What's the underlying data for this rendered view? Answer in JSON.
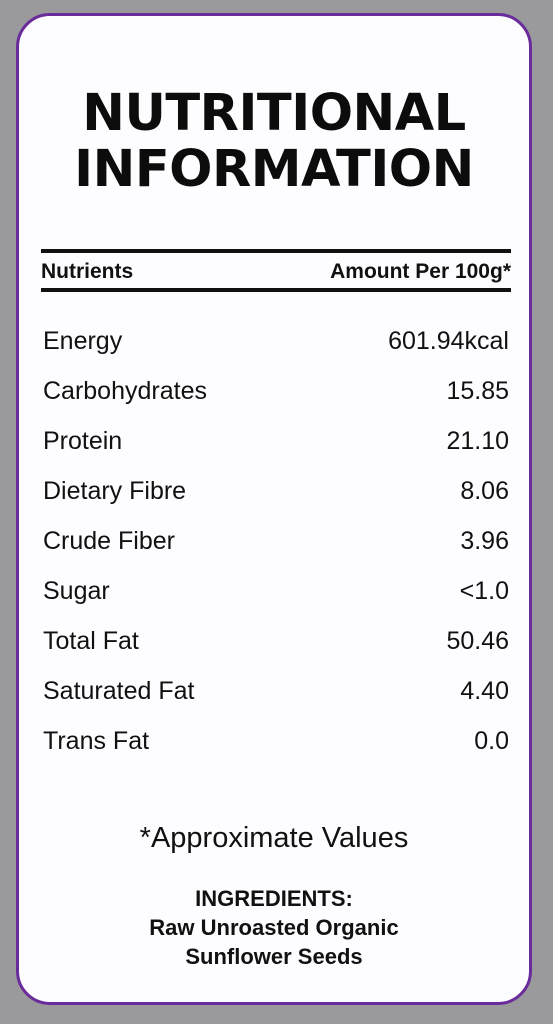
{
  "title": {
    "line1": "NUTRITIONAL",
    "line2": "INFORMATION"
  },
  "table": {
    "header_left": "Nutrients",
    "header_right": "Amount Per 100g*",
    "rows": [
      {
        "name": "Energy",
        "value": "601.94kcal"
      },
      {
        "name": "Carbohydrates",
        "value": "15.85"
      },
      {
        "name": "Protein",
        "value": "21.10"
      },
      {
        "name": "Dietary Fibre",
        "value": "8.06"
      },
      {
        "name": "Crude Fiber",
        "value": "3.96"
      },
      {
        "name": "Sugar",
        "value": "<1.0"
      },
      {
        "name": "Total Fat",
        "value": "50.46"
      },
      {
        "name": "Saturated Fat",
        "value": "4.40"
      },
      {
        "name": "Trans Fat",
        "value": "0.0"
      }
    ]
  },
  "footnote": "*Approximate Values",
  "ingredients": {
    "heading": "INGREDIENTS:",
    "line1": "Raw Unroasted Organic",
    "line2": "Sunflower Seeds"
  },
  "colors": {
    "border": "#6a2c9a",
    "card": "#fdfcff",
    "background": "#9a9a9c"
  }
}
